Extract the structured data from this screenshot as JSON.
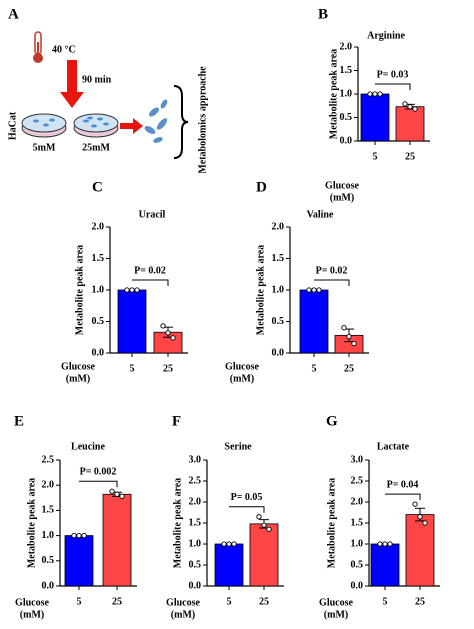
{
  "diagram": {
    "panel": "A",
    "temperature": "40 °C",
    "duration": "90 min",
    "cell_line": "HaCat",
    "dish_left": "5mM",
    "dish_right": "25mM",
    "method": "Metabolomics approache"
  },
  "chart_data": [
    {
      "type": "bar",
      "panel": "B",
      "title": "Arginine",
      "ylabel": "Metabolite peak area",
      "xlabel": [
        "Glucose",
        "(mM)"
      ],
      "categories": [
        "5",
        "25"
      ],
      "values": [
        1,
        0.73
      ],
      "errors": [
        0,
        0.05
      ],
      "points": [
        [
          1,
          1,
          1
        ],
        [
          0.79,
          0.73,
          0.68
        ]
      ],
      "colors": [
        "#0000ff",
        "#ff4545"
      ],
      "ylim": [
        0,
        2
      ],
      "yticks": [
        {
          "value": 0,
          "label": "0.0"
        },
        {
          "value": 0.5,
          "label": "0.5"
        },
        {
          "value": 1,
          "label": "1.0"
        },
        {
          "value": 1.5,
          "label": "1.5"
        },
        {
          "value": 2,
          "label": "2.0"
        }
      ],
      "annotation": "P= 0.03"
    },
    {
      "type": "bar",
      "panel": "C",
      "title": "Uracil",
      "ylabel": "Metabolite peak area",
      "xlabel": [
        "Glucose",
        "(mM)"
      ],
      "categories": [
        "5",
        "25"
      ],
      "values": [
        1,
        0.33
      ],
      "errors": [
        0,
        0.08
      ],
      "points": [
        [
          1,
          1,
          1
        ],
        [
          0.43,
          0.32,
          0.24
        ]
      ],
      "colors": [
        "#0000ff",
        "#ff4545"
      ],
      "ylim": [
        0,
        2
      ],
      "yticks": [
        {
          "value": 0,
          "label": "0.0"
        },
        {
          "value": 0.5,
          "label": "0.5"
        },
        {
          "value": 1,
          "label": "1.0"
        },
        {
          "value": 1.5,
          "label": "1.5"
        },
        {
          "value": 2,
          "label": "2.0"
        }
      ],
      "annotation": "P= 0.02"
    },
    {
      "type": "bar",
      "panel": "D",
      "title": "Valine",
      "ylabel": "Metabolite peak area",
      "xlabel": [
        "Glucose",
        "(mM)"
      ],
      "categories": [
        "5",
        "25"
      ],
      "values": [
        1,
        0.28
      ],
      "errors": [
        0,
        0.1
      ],
      "points": [
        [
          1,
          1,
          1
        ],
        [
          0.4,
          0.26,
          0.15
        ]
      ],
      "colors": [
        "#0000ff",
        "#ff4545"
      ],
      "ylim": [
        0,
        2
      ],
      "yticks": [
        {
          "value": 0,
          "label": "0.0"
        },
        {
          "value": 0.5,
          "label": "0.5"
        },
        {
          "value": 1,
          "label": "1.0"
        },
        {
          "value": 1.5,
          "label": "1.5"
        },
        {
          "value": 2,
          "label": "2.0"
        }
      ],
      "annotation": "P= 0.02"
    },
    {
      "type": "bar",
      "panel": "E",
      "title": "Leucine",
      "ylabel": "Metabolite peak area",
      "xlabel": [
        "Glucose",
        "(mM)"
      ],
      "categories": [
        "5",
        "25"
      ],
      "values": [
        1,
        1.82
      ],
      "errors": [
        0,
        0.04
      ],
      "points": [
        [
          1,
          1,
          1
        ],
        [
          1.88,
          1.82,
          1.78
        ]
      ],
      "colors": [
        "#0000ff",
        "#ff4545"
      ],
      "ylim": [
        0,
        2.5
      ],
      "yticks": [
        {
          "value": 0,
          "label": "0.0"
        },
        {
          "value": 0.5,
          "label": "0.5"
        },
        {
          "value": 1,
          "label": "1.0"
        },
        {
          "value": 1.5,
          "label": "1.5"
        },
        {
          "value": 2,
          "label": "2.0"
        },
        {
          "value": 2.5,
          "label": "2.5"
        }
      ],
      "annotation": "P= 0.002"
    },
    {
      "type": "bar",
      "panel": "F",
      "title": "Serine",
      "ylabel": "Metabolite peak area",
      "xlabel": [
        "Glucose",
        "(mM)"
      ],
      "categories": [
        "5",
        "25"
      ],
      "values": [
        1,
        1.48
      ],
      "errors": [
        0,
        0.1
      ],
      "points": [
        [
          1,
          1,
          1
        ],
        [
          1.65,
          1.45,
          1.35
        ]
      ],
      "colors": [
        "#0000ff",
        "#ff4545"
      ],
      "ylim": [
        0,
        3
      ],
      "yticks": [
        {
          "value": 0,
          "label": "0.0"
        },
        {
          "value": 0.5,
          "label": "0.5"
        },
        {
          "value": 1,
          "label": "1.0"
        },
        {
          "value": 1.5,
          "label": "1.5"
        },
        {
          "value": 2,
          "label": "2.0"
        },
        {
          "value": 2.5,
          "label": "2.5"
        },
        {
          "value": 3,
          "label": "3.0"
        }
      ],
      "annotation": "P= 0.05"
    },
    {
      "type": "bar",
      "panel": "G",
      "title": "Lactate",
      "ylabel": "Metabolite peak area",
      "xlabel": [
        "Glucose",
        "(mM)"
      ],
      "categories": [
        "5",
        "25"
      ],
      "values": [
        1,
        1.7
      ],
      "errors": [
        0,
        0.15
      ],
      "points": [
        [
          1,
          1,
          1
        ],
        [
          1.95,
          1.65,
          1.5
        ]
      ],
      "colors": [
        "#0000ff",
        "#ff4545"
      ],
      "ylim": [
        0,
        3
      ],
      "yticks": [
        {
          "value": 0,
          "label": "0.0"
        },
        {
          "value": 0.5,
          "label": "0.5"
        },
        {
          "value": 1,
          "label": "1.0"
        },
        {
          "value": 1.5,
          "label": "1.5"
        },
        {
          "value": 2,
          "label": "2.0"
        },
        {
          "value": 2.5,
          "label": "2.5"
        },
        {
          "value": 3,
          "label": "3.0"
        }
      ],
      "annotation": "P= 0.04"
    }
  ]
}
